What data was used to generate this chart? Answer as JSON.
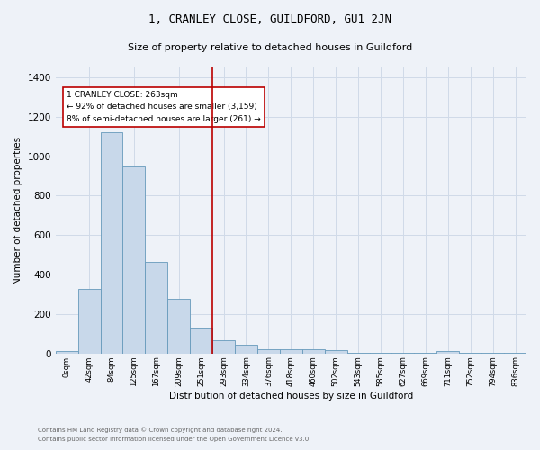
{
  "title": "1, CRANLEY CLOSE, GUILDFORD, GU1 2JN",
  "subtitle": "Size of property relative to detached houses in Guildford",
  "xlabel": "Distribution of detached houses by size in Guildford",
  "ylabel": "Number of detached properties",
  "footnote1": "Contains HM Land Registry data © Crown copyright and database right 2024.",
  "footnote2": "Contains public sector information licensed under the Open Government Licence v3.0.",
  "bin_labels": [
    "0sqm",
    "42sqm",
    "84sqm",
    "125sqm",
    "167sqm",
    "209sqm",
    "251sqm",
    "293sqm",
    "334sqm",
    "376sqm",
    "418sqm",
    "460sqm",
    "502sqm",
    "543sqm",
    "585sqm",
    "627sqm",
    "669sqm",
    "711sqm",
    "752sqm",
    "794sqm",
    "836sqm"
  ],
  "bar_heights": [
    10,
    325,
    1120,
    950,
    465,
    275,
    130,
    68,
    45,
    20,
    22,
    20,
    15,
    5,
    5,
    5,
    5,
    12,
    5,
    5,
    5
  ],
  "bar_color": "#c8d8ea",
  "bar_edge_color": "#6699bb",
  "grid_color": "#d0dae8",
  "property_line_color": "#bb0000",
  "annotation_text": "1 CRANLEY CLOSE: 263sqm\n← 92% of detached houses are smaller (3,159)\n8% of semi-detached houses are larger (261) →",
  "annotation_box_color": "#ffffff",
  "annotation_box_edge": "#bb0000",
  "ylim": [
    0,
    1450
  ],
  "yticks": [
    0,
    200,
    400,
    600,
    800,
    1000,
    1200,
    1400
  ],
  "background_color": "#eef2f8",
  "title_fontsize": 9,
  "subtitle_fontsize": 8,
  "ylabel_fontsize": 7.5,
  "xlabel_fontsize": 7.5,
  "ytick_fontsize": 7.5,
  "xtick_fontsize": 6,
  "footnote_fontsize": 5,
  "footnote_color": "#666666"
}
